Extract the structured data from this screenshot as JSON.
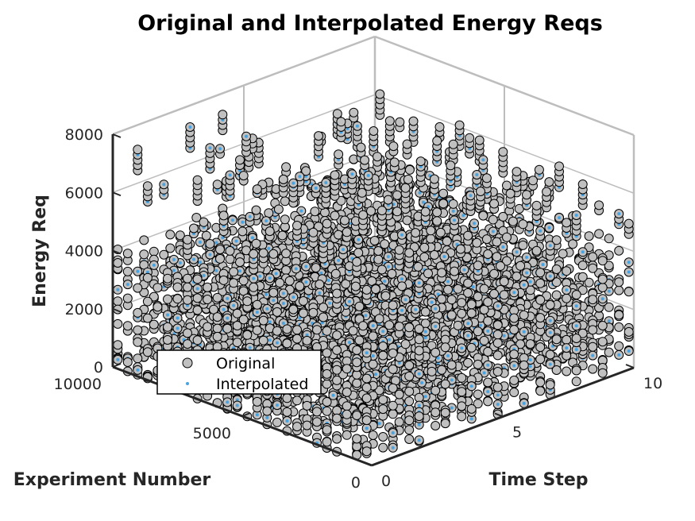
{
  "chart_data": {
    "type": "scatter",
    "title": "Original and Interpolated Energy Reqs",
    "xlabel": "Experiment Number",
    "ylabel": "Time Step",
    "zlabel": "Energy Req",
    "xlim": [
      0,
      10000
    ],
    "ylim": [
      0,
      10
    ],
    "zlim": [
      0,
      8000
    ],
    "xticks": [
      "0",
      "5000",
      "10000"
    ],
    "yticks": [
      "0",
      "5",
      "10"
    ],
    "zticks": [
      "0",
      "2000",
      "4000",
      "6000",
      "8000"
    ],
    "grid": true,
    "legend_position": "south-west",
    "series": [
      {
        "name": "Original",
        "marker": "circle",
        "face_color": "#c0c0c0",
        "edge_color": "#000000",
        "time_steps": [
          0,
          1,
          2,
          3,
          4,
          5,
          6,
          7,
          8,
          9,
          10
        ],
        "experiment_range": [
          0,
          10000
        ],
        "low_band_range": [
          0,
          1800
        ],
        "mid_band_range": [
          2000,
          4200
        ],
        "high_band_range": [
          4500,
          8000
        ]
      },
      {
        "name": "Interpolated",
        "marker": "point",
        "color": "#4aa3df",
        "time_steps": [
          0,
          1,
          2,
          3,
          4,
          5,
          6,
          7,
          8,
          9,
          10
        ],
        "experiment_range": [
          0,
          10000
        ],
        "value_range": [
          0,
          8000
        ]
      }
    ]
  }
}
